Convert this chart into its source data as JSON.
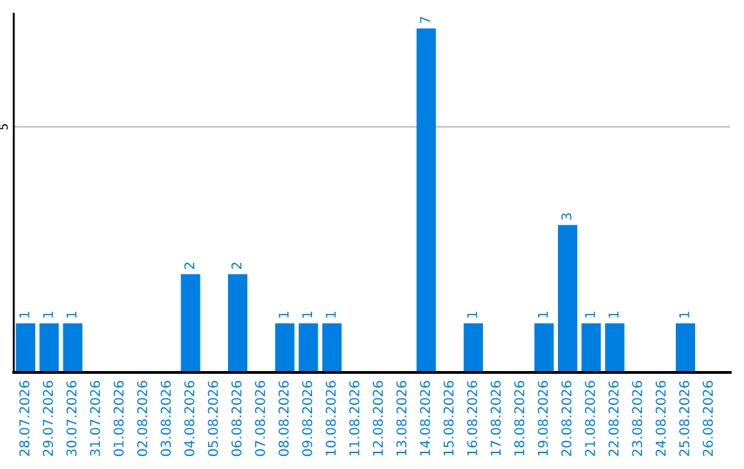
{
  "chart_data": {
    "type": "bar",
    "categories": [
      "28.07.2026",
      "29.07.2026",
      "30.07.2026",
      "31.07.2026",
      "01.08.2026",
      "02.08.2026",
      "03.08.2026",
      "04.08.2026",
      "05.08.2026",
      "06.08.2026",
      "07.08.2026",
      "08.08.2026",
      "09.08.2026",
      "10.08.2026",
      "11.08.2026",
      "12.08.2026",
      "13.08.2026",
      "14.08.2026",
      "15.08.2026",
      "16.08.2026",
      "17.08.2026",
      "18.08.2026",
      "19.08.2026",
      "20.08.2026",
      "21.08.2026",
      "22.08.2026",
      "23.08.2026",
      "24.08.2026",
      "25.08.2026",
      "26.08.2026"
    ],
    "values": [
      1,
      1,
      1,
      null,
      null,
      null,
      null,
      2,
      null,
      2,
      null,
      1,
      1,
      1,
      null,
      null,
      null,
      7,
      null,
      1,
      null,
      null,
      1,
      3,
      1,
      1,
      null,
      null,
      1,
      null
    ],
    "color": "#007fe3",
    "ylim": [
      0,
      7.3
    ],
    "yticks": [
      5
    ],
    "grid": "y",
    "data_labels": true
  }
}
